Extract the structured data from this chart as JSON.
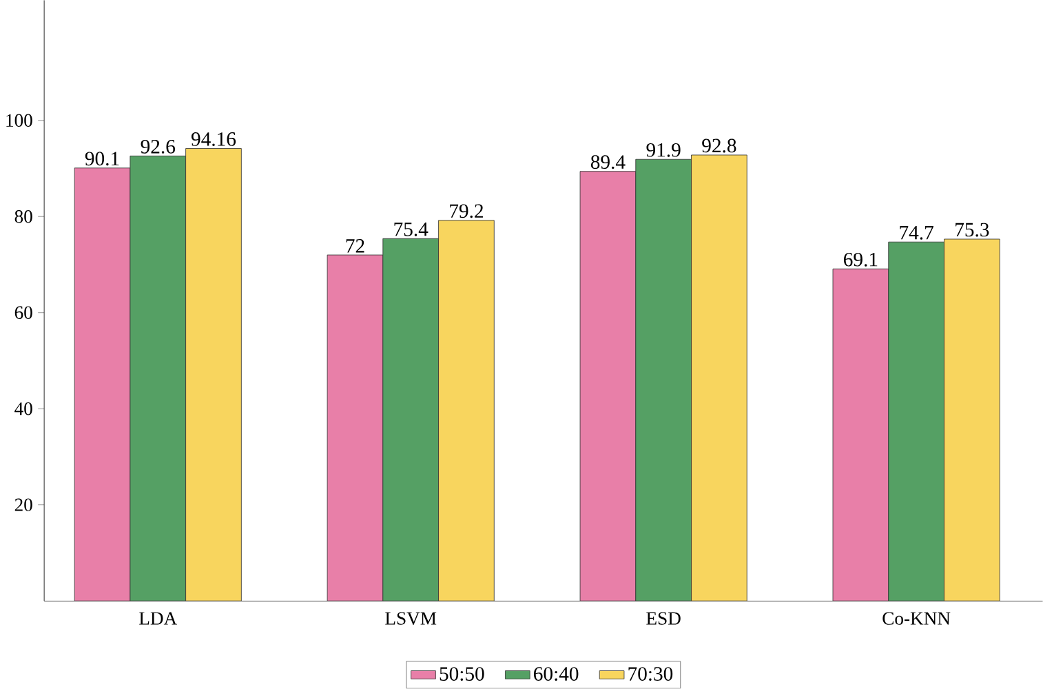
{
  "chart_data": {
    "type": "bar",
    "categories": [
      "LDA",
      "LSVM",
      "ESD",
      "Co-KNN"
    ],
    "series": [
      {
        "name": "50:50",
        "color": "#e87fa8",
        "values": [
          90.1,
          72,
          89.4,
          69.1
        ]
      },
      {
        "name": "60:40",
        "color": "#55a064",
        "values": [
          92.6,
          75.4,
          91.9,
          74.7
        ]
      },
      {
        "name": "70:30",
        "color": "#f8d55e",
        "values": [
          94.16,
          79.2,
          92.8,
          75.3
        ]
      }
    ],
    "ylim": [
      0,
      125
    ],
    "yticks": [
      20,
      40,
      60,
      80,
      100
    ],
    "data_labels": true,
    "grid": false,
    "legend": "bottom"
  }
}
